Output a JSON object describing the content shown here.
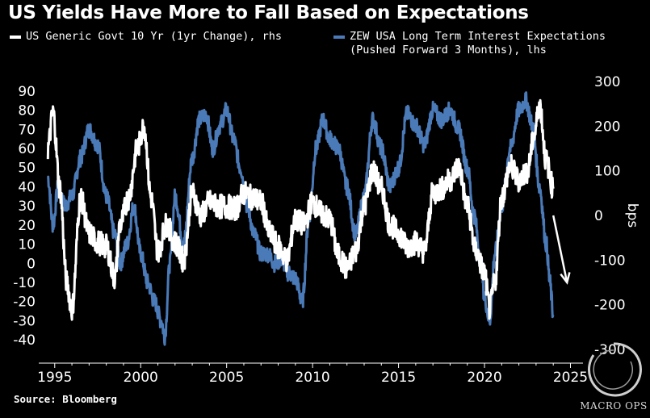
{
  "title": "US Yields Have More to Fall Based on Expectations",
  "source": "Source: Bloomberg",
  "logo_text": "MACRO OPS",
  "colors": {
    "white_series": "#ffffff",
    "blue_series": "#4a7ab8",
    "background": "#000000"
  },
  "chart_data": {
    "type": "line",
    "title": "US Yields Have More to Fall Based on Expectations",
    "xlabel": "",
    "ylabel_left": "",
    "ylabel_right": "bps",
    "xlim": [
      1994.4,
      2025.4
    ],
    "ylim_left": [
      -45,
      95
    ],
    "ylim_right": [
      -300,
      300
    ],
    "x_ticks": [
      1995,
      2000,
      2005,
      2010,
      2015,
      2020,
      2025
    ],
    "x_tick_labels": [
      "1995",
      "2000",
      "2005",
      "2010",
      "2015",
      "2020",
      "2025"
    ],
    "left_ticks": [
      90,
      80,
      70,
      60,
      50,
      40,
      30,
      20,
      10,
      0,
      -10,
      -20,
      -30,
      -40
    ],
    "left_tick_labels": [
      "90",
      "80",
      "70",
      "60",
      "50",
      "40",
      "30",
      "20",
      "10",
      "0",
      "-10",
      "-20",
      "-30",
      "-40"
    ],
    "right_ticks": [
      300,
      200,
      100,
      0,
      -100,
      -200,
      -300
    ],
    "right_tick_labels": [
      "300",
      "200",
      "100",
      "0",
      "-100",
      "-200",
      "-300"
    ],
    "annotation": {
      "type": "arrow",
      "description": "downward arrow indicating expected decline",
      "from": [
        2024.0,
        0
      ],
      "to": [
        2024.8,
        -150
      ]
    },
    "series": [
      {
        "name": "ZEW USA Long Term Interest Expectations (Pushed Forward 3 Months), lhs",
        "axis": "left",
        "color": "#4a7ab8",
        "x": [
          1994.6,
          1994.9,
          1995.2,
          1995.6,
          1996.0,
          1996.5,
          1997.0,
          1997.5,
          1998.0,
          1998.5,
          1998.8,
          1999.2,
          1999.6,
          2000.0,
          2000.4,
          2000.8,
          2001.2,
          2001.4,
          2001.7,
          2002.0,
          2002.5,
          2003.0,
          2003.4,
          2003.8,
          2004.2,
          2004.6,
          2005.0,
          2005.4,
          2005.8,
          2006.2,
          2006.6,
          2007.0,
          2007.4,
          2007.8,
          2008.2,
          2008.6,
          2009.0,
          2009.4,
          2009.8,
          2010.2,
          2010.6,
          2011.0,
          2011.5,
          2012.0,
          2012.5,
          2013.0,
          2013.5,
          2014.0,
          2014.5,
          2015.0,
          2015.5,
          2016.0,
          2016.5,
          2017.0,
          2017.5,
          2018.0,
          2018.5,
          2019.0,
          2019.4,
          2019.8,
          2020.0,
          2020.3,
          2020.6,
          2021.0,
          2021.5,
          2022.0,
          2022.4,
          2022.8,
          2023.2,
          2023.6,
          2023.8,
          2024.0
        ],
        "values": [
          45,
          20,
          40,
          30,
          35,
          55,
          70,
          62,
          35,
          15,
          0,
          10,
          30,
          5,
          -10,
          -20,
          -30,
          -38,
          0,
          35,
          10,
          55,
          75,
          78,
          60,
          72,
          80,
          65,
          50,
          30,
          15,
          5,
          5,
          0,
          2,
          -5,
          -8,
          -20,
          25,
          60,
          75,
          65,
          60,
          40,
          15,
          35,
          75,
          60,
          40,
          50,
          78,
          72,
          62,
          80,
          75,
          80,
          70,
          50,
          25,
          0,
          -18,
          -30,
          5,
          30,
          60,
          80,
          85,
          72,
          40,
          10,
          -10,
          -27
        ]
      },
      {
        "name": "US Generic Govt 10 Yr (1yr Change), rhs",
        "axis": "right",
        "color": "#ffffff",
        "x": [
          1994.6,
          1994.9,
          1995.3,
          1995.7,
          1996.0,
          1996.5,
          1997.0,
          1997.5,
          1998.0,
          1998.5,
          1998.8,
          1999.3,
          1999.8,
          2000.2,
          2000.6,
          2001.0,
          2001.5,
          2002.0,
          2002.5,
          2003.0,
          2003.5,
          2004.0,
          2004.5,
          2005.0,
          2005.5,
          2006.0,
          2006.5,
          2007.0,
          2007.5,
          2008.0,
          2008.5,
          2009.0,
          2009.5,
          2010.0,
          2010.5,
          2011.0,
          2011.5,
          2012.0,
          2012.5,
          2013.0,
          2013.5,
          2014.0,
          2014.5,
          2015.0,
          2015.5,
          2016.0,
          2016.5,
          2017.0,
          2017.5,
          2018.0,
          2018.5,
          2019.0,
          2019.5,
          2020.0,
          2020.3,
          2020.6,
          2021.0,
          2021.5,
          2022.0,
          2022.5,
          2022.9,
          2023.2,
          2023.6,
          2024.0
        ],
        "values": [
          150,
          230,
          60,
          -150,
          -210,
          40,
          -40,
          -60,
          -70,
          -140,
          -20,
          40,
          150,
          200,
          40,
          -80,
          -20,
          -60,
          -100,
          50,
          0,
          30,
          20,
          20,
          15,
          50,
          40,
          30,
          -40,
          -70,
          -100,
          -10,
          -20,
          30,
          5,
          -10,
          -90,
          -120,
          -80,
          20,
          100,
          60,
          -20,
          -40,
          -70,
          -60,
          -80,
          50,
          60,
          80,
          110,
          20,
          -80,
          -130,
          -210,
          -150,
          40,
          110,
          80,
          100,
          180,
          250,
          120,
          60
        ]
      }
    ]
  },
  "legend": [
    {
      "label": "US Generic Govt 10 Yr (1yr Change), rhs",
      "color": "#ffffff"
    },
    {
      "label_line1": "ZEW USA Long Term Interest Expectations",
      "label_line2": "(Pushed Forward 3 Months), lhs",
      "color": "#4a7ab8"
    }
  ]
}
